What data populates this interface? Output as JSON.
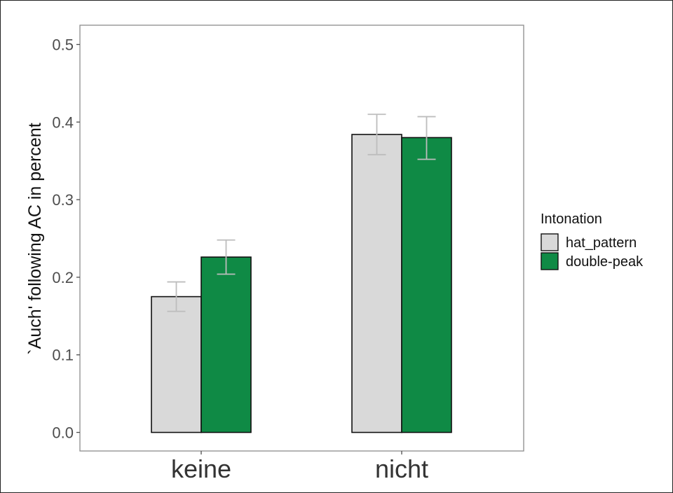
{
  "chart_data": {
    "type": "bar",
    "title": "",
    "xlabel": "",
    "ylabel": "`Auch' following AC in percent",
    "categories": [
      "keine",
      "nicht"
    ],
    "series": [
      {
        "name": "hat_pattern",
        "color": "#d9d9d9",
        "values": [
          0.175,
          0.384
        ],
        "err_low": [
          0.156,
          0.358
        ],
        "err_high": [
          0.194,
          0.41
        ]
      },
      {
        "name": "double-peak",
        "color": "#0f8a45",
        "values": [
          0.226,
          0.38
        ],
        "err_low": [
          0.204,
          0.352
        ],
        "err_high": [
          0.248,
          0.407
        ]
      }
    ],
    "ylim": [
      0,
      0.52
    ],
    "yticks": [
      0.0,
      0.1,
      0.2,
      0.3,
      0.4,
      0.5
    ],
    "ytick_labels": [
      "0.0",
      "0.1",
      "0.2",
      "0.3",
      "0.4",
      "0.5"
    ],
    "grid": false,
    "legend": {
      "title": "Intonation",
      "position": "right"
    },
    "error_bar_color": "#bdbdbd"
  }
}
